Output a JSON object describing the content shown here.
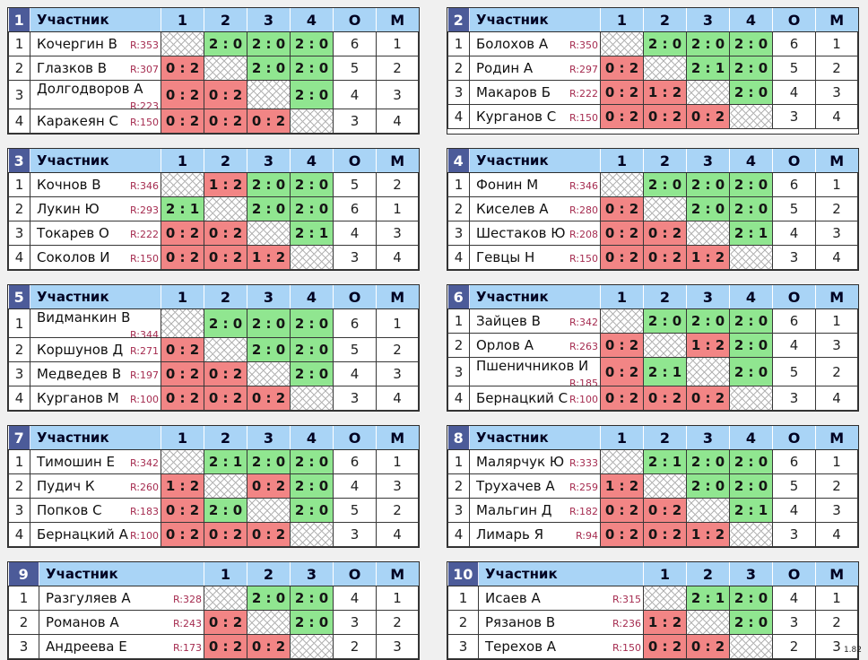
{
  "version": "1.82",
  "header": {
    "participant": "Участник",
    "points": "О",
    "place": "М"
  },
  "colors": {
    "win_bg": "#90e690",
    "loss_bg": "#f28585",
    "header_bg": "#a9d4f6",
    "group_badge_bg": "#4c5b99",
    "rating_text": "#a52c50",
    "page_bg": "#f0f0f0"
  },
  "tables": [
    {
      "n": "1",
      "cols": [
        "1",
        "2",
        "3",
        "4"
      ],
      "rows": [
        {
          "num": "1",
          "name": "Кочергин В",
          "rating": "R:353",
          "scores": [
            [
              "s",
              ""
            ],
            [
              "w",
              "2 : 0"
            ],
            [
              "w",
              "2 : 0"
            ],
            [
              "w",
              "2 : 0"
            ]
          ],
          "o": "6",
          "m": "1"
        },
        {
          "num": "2",
          "name": "Глазков В",
          "rating": "R:307",
          "scores": [
            [
              "l",
              "0 : 2"
            ],
            [
              "s",
              ""
            ],
            [
              "w",
              "2 : 0"
            ],
            [
              "w",
              "2 : 0"
            ]
          ],
          "o": "5",
          "m": "2"
        },
        {
          "num": "3",
          "name": "Долгодворов А",
          "rating": "R:223",
          "scores": [
            [
              "l",
              "0 : 2"
            ],
            [
              "l",
              "0 : 2"
            ],
            [
              "s",
              ""
            ],
            [
              "w",
              "2 : 0"
            ]
          ],
          "o": "4",
          "m": "3"
        },
        {
          "num": "4",
          "name": "Каракеян С",
          "rating": "R:150",
          "scores": [
            [
              "l",
              "0 : 2"
            ],
            [
              "l",
              "0 : 2"
            ],
            [
              "l",
              "0 : 2"
            ],
            [
              "s",
              ""
            ]
          ],
          "o": "3",
          "m": "4"
        }
      ]
    },
    {
      "n": "2",
      "cols": [
        "1",
        "2",
        "3",
        "4"
      ],
      "rows": [
        {
          "num": "1",
          "name": "Болохов А",
          "rating": "R:350",
          "scores": [
            [
              "s",
              ""
            ],
            [
              "w",
              "2 : 0"
            ],
            [
              "w",
              "2 : 0"
            ],
            [
              "w",
              "2 : 0"
            ]
          ],
          "o": "6",
          "m": "1"
        },
        {
          "num": "2",
          "name": "Родин А",
          "rating": "R:297",
          "scores": [
            [
              "l",
              "0 : 2"
            ],
            [
              "s",
              ""
            ],
            [
              "w",
              "2 : 1"
            ],
            [
              "w",
              "2 : 0"
            ]
          ],
          "o": "5",
          "m": "2"
        },
        {
          "num": "3",
          "name": "Макаров Б",
          "rating": "R:222",
          "scores": [
            [
              "l",
              "0 : 2"
            ],
            [
              "l",
              "1 : 2"
            ],
            [
              "s",
              ""
            ],
            [
              "w",
              "2 : 0"
            ]
          ],
          "o": "4",
          "m": "3"
        },
        {
          "num": "4",
          "name": "Курганов С",
          "rating": "R:150",
          "scores": [
            [
              "l",
              "0 : 2"
            ],
            [
              "l",
              "0 : 2"
            ],
            [
              "l",
              "0 : 2"
            ],
            [
              "s",
              ""
            ]
          ],
          "o": "3",
          "m": "4"
        }
      ]
    },
    {
      "n": "3",
      "cols": [
        "1",
        "2",
        "3",
        "4"
      ],
      "rows": [
        {
          "num": "1",
          "name": "Кочнов В",
          "rating": "R:346",
          "scores": [
            [
              "s",
              ""
            ],
            [
              "l",
              "1 : 2"
            ],
            [
              "w",
              "2 : 0"
            ],
            [
              "w",
              "2 : 0"
            ]
          ],
          "o": "5",
          "m": "2"
        },
        {
          "num": "2",
          "name": "Лукин Ю",
          "rating": "R:293",
          "scores": [
            [
              "w",
              "2 : 1"
            ],
            [
              "s",
              ""
            ],
            [
              "w",
              "2 : 0"
            ],
            [
              "w",
              "2 : 0"
            ]
          ],
          "o": "6",
          "m": "1"
        },
        {
          "num": "3",
          "name": "Токарев О",
          "rating": "R:222",
          "scores": [
            [
              "l",
              "0 : 2"
            ],
            [
              "l",
              "0 : 2"
            ],
            [
              "s",
              ""
            ],
            [
              "w",
              "2 : 1"
            ]
          ],
          "o": "4",
          "m": "3"
        },
        {
          "num": "4",
          "name": "Соколов И",
          "rating": "R:150",
          "scores": [
            [
              "l",
              "0 : 2"
            ],
            [
              "l",
              "0 : 2"
            ],
            [
              "l",
              "1 : 2"
            ],
            [
              "s",
              ""
            ]
          ],
          "o": "3",
          "m": "4"
        }
      ]
    },
    {
      "n": "4",
      "cols": [
        "1",
        "2",
        "3",
        "4"
      ],
      "rows": [
        {
          "num": "1",
          "name": "Фонин М",
          "rating": "R:346",
          "scores": [
            [
              "s",
              ""
            ],
            [
              "w",
              "2 : 0"
            ],
            [
              "w",
              "2 : 0"
            ],
            [
              "w",
              "2 : 0"
            ]
          ],
          "o": "6",
          "m": "1"
        },
        {
          "num": "2",
          "name": "Киселев А",
          "rating": "R:280",
          "scores": [
            [
              "l",
              "0 : 2"
            ],
            [
              "s",
              ""
            ],
            [
              "w",
              "2 : 0"
            ],
            [
              "w",
              "2 : 0"
            ]
          ],
          "o": "5",
          "m": "2"
        },
        {
          "num": "3",
          "name": "Шестаков Ю",
          "rating": "R:208",
          "scores": [
            [
              "l",
              "0 : 2"
            ],
            [
              "l",
              "0 : 2"
            ],
            [
              "s",
              ""
            ],
            [
              "w",
              "2 : 1"
            ]
          ],
          "o": "4",
          "m": "3"
        },
        {
          "num": "4",
          "name": "Гевцы Н",
          "rating": "R:150",
          "scores": [
            [
              "l",
              "0 : 2"
            ],
            [
              "l",
              "0 : 2"
            ],
            [
              "l",
              "1 : 2"
            ],
            [
              "s",
              ""
            ]
          ],
          "o": "3",
          "m": "4"
        }
      ]
    },
    {
      "n": "5",
      "cols": [
        "1",
        "2",
        "3",
        "4"
      ],
      "rows": [
        {
          "num": "1",
          "name": "Видманкин В",
          "rating": "R:344",
          "scores": [
            [
              "s",
              ""
            ],
            [
              "w",
              "2 : 0"
            ],
            [
              "w",
              "2 : 0"
            ],
            [
              "w",
              "2 : 0"
            ]
          ],
          "o": "6",
          "m": "1"
        },
        {
          "num": "2",
          "name": "Коршунов Д",
          "rating": "R:271",
          "scores": [
            [
              "l",
              "0 : 2"
            ],
            [
              "s",
              ""
            ],
            [
              "w",
              "2 : 0"
            ],
            [
              "w",
              "2 : 0"
            ]
          ],
          "o": "5",
          "m": "2"
        },
        {
          "num": "3",
          "name": "Медведев В",
          "rating": "R:197",
          "scores": [
            [
              "l",
              "0 : 2"
            ],
            [
              "l",
              "0 : 2"
            ],
            [
              "s",
              ""
            ],
            [
              "w",
              "2 : 0"
            ]
          ],
          "o": "4",
          "m": "3"
        },
        {
          "num": "4",
          "name": "Курганов М",
          "rating": "R:100",
          "scores": [
            [
              "l",
              "0 : 2"
            ],
            [
              "l",
              "0 : 2"
            ],
            [
              "l",
              "0 : 2"
            ],
            [
              "s",
              ""
            ]
          ],
          "o": "3",
          "m": "4"
        }
      ]
    },
    {
      "n": "6",
      "cols": [
        "1",
        "2",
        "3",
        "4"
      ],
      "rows": [
        {
          "num": "1",
          "name": "Зайцев В",
          "rating": "R:342",
          "scores": [
            [
              "s",
              ""
            ],
            [
              "w",
              "2 : 0"
            ],
            [
              "w",
              "2 : 0"
            ],
            [
              "w",
              "2 : 0"
            ]
          ],
          "o": "6",
          "m": "1"
        },
        {
          "num": "2",
          "name": "Орлов А",
          "rating": "R:263",
          "scores": [
            [
              "l",
              "0 : 2"
            ],
            [
              "s",
              ""
            ],
            [
              "l",
              "1 : 2"
            ],
            [
              "w",
              "2 : 0"
            ]
          ],
          "o": "4",
          "m": "3"
        },
        {
          "num": "3",
          "name": "Пшеничников И",
          "rating": "R:185",
          "scores": [
            [
              "l",
              "0 : 2"
            ],
            [
              "w",
              "2 : 1"
            ],
            [
              "s",
              ""
            ],
            [
              "w",
              "2 : 0"
            ]
          ],
          "o": "5",
          "m": "2"
        },
        {
          "num": "4",
          "name": "Бернацкий С",
          "rating": "R:100",
          "scores": [
            [
              "l",
              "0 : 2"
            ],
            [
              "l",
              "0 : 2"
            ],
            [
              "l",
              "0 : 2"
            ],
            [
              "s",
              ""
            ]
          ],
          "o": "3",
          "m": "4"
        }
      ]
    },
    {
      "n": "7",
      "cols": [
        "1",
        "2",
        "3",
        "4"
      ],
      "rows": [
        {
          "num": "1",
          "name": "Тимошин Е",
          "rating": "R:342",
          "scores": [
            [
              "s",
              ""
            ],
            [
              "w",
              "2 : 1"
            ],
            [
              "w",
              "2 : 0"
            ],
            [
              "w",
              "2 : 0"
            ]
          ],
          "o": "6",
          "m": "1"
        },
        {
          "num": "2",
          "name": "Пудич К",
          "rating": "R:260",
          "scores": [
            [
              "l",
              "1 : 2"
            ],
            [
              "s",
              ""
            ],
            [
              "l",
              "0 : 2"
            ],
            [
              "w",
              "2 : 0"
            ]
          ],
          "o": "4",
          "m": "3"
        },
        {
          "num": "3",
          "name": "Попков С",
          "rating": "R:183",
          "scores": [
            [
              "l",
              "0 : 2"
            ],
            [
              "w",
              "2 : 0"
            ],
            [
              "s",
              ""
            ],
            [
              "w",
              "2 : 0"
            ]
          ],
          "o": "5",
          "m": "2"
        },
        {
          "num": "4",
          "name": "Бернацкий А",
          "rating": "R:100",
          "scores": [
            [
              "l",
              "0 : 2"
            ],
            [
              "l",
              "0 : 2"
            ],
            [
              "l",
              "0 : 2"
            ],
            [
              "s",
              ""
            ]
          ],
          "o": "3",
          "m": "4"
        }
      ]
    },
    {
      "n": "8",
      "cols": [
        "1",
        "2",
        "3",
        "4"
      ],
      "rows": [
        {
          "num": "1",
          "name": "Малярчук Ю",
          "rating": "R:333",
          "scores": [
            [
              "s",
              ""
            ],
            [
              "w",
              "2 : 1"
            ],
            [
              "w",
              "2 : 0"
            ],
            [
              "w",
              "2 : 0"
            ]
          ],
          "o": "6",
          "m": "1"
        },
        {
          "num": "2",
          "name": "Трухачев А",
          "rating": "R:259",
          "scores": [
            [
              "l",
              "1 : 2"
            ],
            [
              "s",
              ""
            ],
            [
              "w",
              "2 : 0"
            ],
            [
              "w",
              "2 : 0"
            ]
          ],
          "o": "5",
          "m": "2"
        },
        {
          "num": "3",
          "name": "Мальгин Д",
          "rating": "R:182",
          "scores": [
            [
              "l",
              "0 : 2"
            ],
            [
              "l",
              "0 : 2"
            ],
            [
              "s",
              ""
            ],
            [
              "w",
              "2 : 1"
            ]
          ],
          "o": "4",
          "m": "3"
        },
        {
          "num": "4",
          "name": "Лимарь Я",
          "rating": "R:94",
          "scores": [
            [
              "l",
              "0 : 2"
            ],
            [
              "l",
              "0 : 2"
            ],
            [
              "l",
              "1 : 2"
            ],
            [
              "s",
              ""
            ]
          ],
          "o": "3",
          "m": "4"
        }
      ]
    },
    {
      "n": "9",
      "cols": [
        "1",
        "2",
        "3"
      ],
      "rows": [
        {
          "num": "1",
          "name": "Разгуляев А",
          "rating": "R:328",
          "scores": [
            [
              "s",
              ""
            ],
            [
              "w",
              "2 : 0"
            ],
            [
              "w",
              "2 : 0"
            ]
          ],
          "o": "4",
          "m": "1"
        },
        {
          "num": "2",
          "name": "Романов А",
          "rating": "R:243",
          "scores": [
            [
              "l",
              "0 : 2"
            ],
            [
              "s",
              ""
            ],
            [
              "w",
              "2 : 0"
            ]
          ],
          "o": "3",
          "m": "2"
        },
        {
          "num": "3",
          "name": "Андреева Е",
          "rating": "R:173",
          "scores": [
            [
              "l",
              "0 : 2"
            ],
            [
              "l",
              "0 : 2"
            ],
            [
              "s",
              ""
            ]
          ],
          "o": "2",
          "m": "3"
        }
      ]
    },
    {
      "n": "10",
      "cols": [
        "1",
        "2",
        "3"
      ],
      "rows": [
        {
          "num": "1",
          "name": "Исаев А",
          "rating": "R:315",
          "scores": [
            [
              "s",
              ""
            ],
            [
              "w",
              "2 : 1"
            ],
            [
              "w",
              "2 : 0"
            ]
          ],
          "o": "4",
          "m": "1"
        },
        {
          "num": "2",
          "name": "Рязанов В",
          "rating": "R:236",
          "scores": [
            [
              "l",
              "1 : 2"
            ],
            [
              "s",
              ""
            ],
            [
              "w",
              "2 : 0"
            ]
          ],
          "o": "3",
          "m": "2"
        },
        {
          "num": "3",
          "name": "Терехов А",
          "rating": "R:150",
          "scores": [
            [
              "l",
              "0 : 2"
            ],
            [
              "l",
              "0 : 2"
            ],
            [
              "s",
              ""
            ]
          ],
          "o": "2",
          "m": "3"
        }
      ]
    }
  ]
}
